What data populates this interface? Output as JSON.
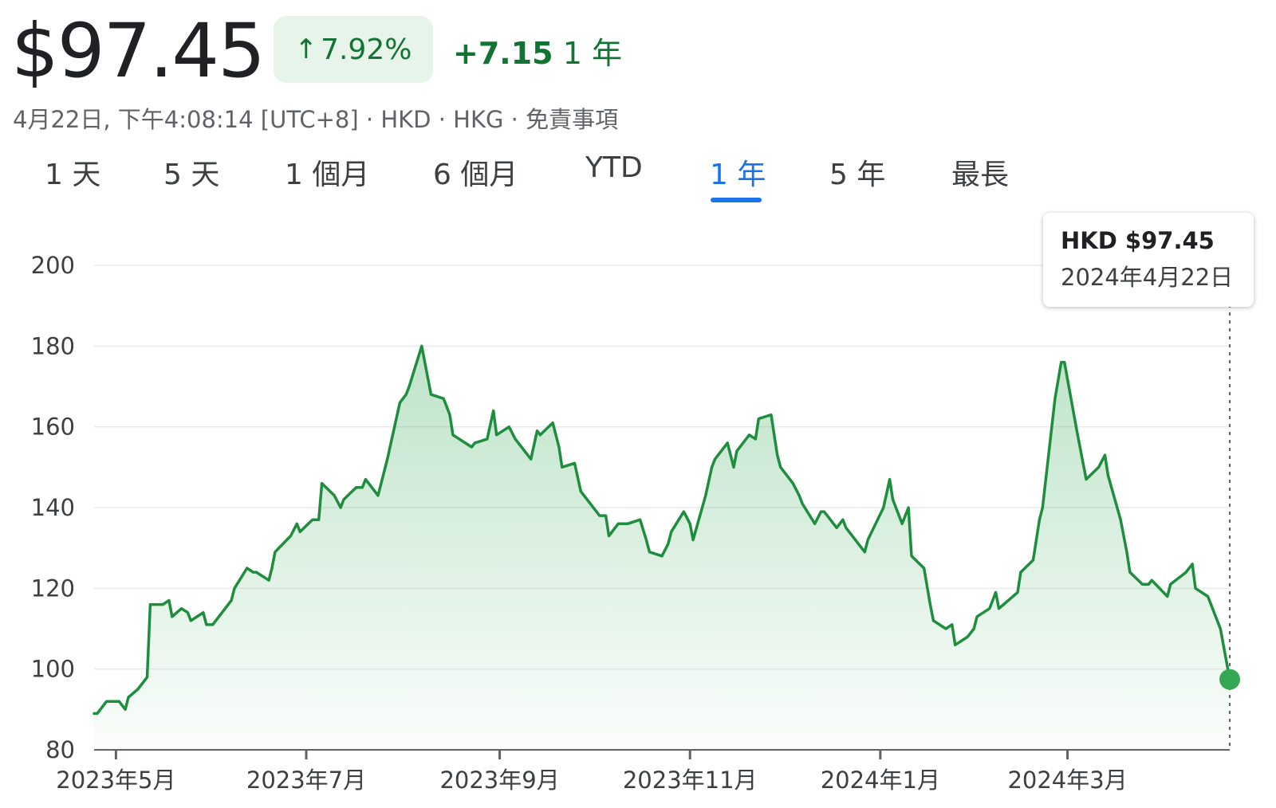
{
  "header": {
    "price": "$97.45",
    "change_pct": "7.92%",
    "change_arrow": "up-arrow-icon",
    "change_abs": "+7.15",
    "change_period": "1 年",
    "subline": "4月22日, 下午4:08:14 [UTC+8] · HKD · HKG · 免責事項"
  },
  "tabs": [
    "1 天",
    "5 天",
    "1 個月",
    "6 個月",
    "YTD",
    "1 年",
    "5 年",
    "最長"
  ],
  "active_tab": "1 年",
  "tooltip": {
    "price": "HKD $97.45",
    "date": "2024年4月22日"
  },
  "colors": {
    "line": "#1e8e3e",
    "fill_top": "#34a853",
    "positive": "#137333",
    "badge_bg": "#e6f4ea",
    "tab_active": "#1a73e8",
    "grid": "#e8eaed"
  },
  "chart_data": {
    "type": "area",
    "ylim": [
      80,
      200
    ],
    "yticks": [
      80,
      100,
      120,
      140,
      160,
      180,
      200
    ],
    "xtick_labels": [
      "2023年5月",
      "2023年7月",
      "2023年9月",
      "2023年11月",
      "2024年1月",
      "2024年3月"
    ],
    "xtick_dates": [
      "2023-05-01",
      "2023-07-01",
      "2023-09-01",
      "2023-11-01",
      "2024-01-01",
      "2024-03-01"
    ],
    "grid": true,
    "series": [
      {
        "x": [
          "2023-04-24",
          "2023-04-25",
          "2023-04-27",
          "2023-04-28",
          "2023-05-02",
          "2023-05-04",
          "2023-05-05",
          "2023-05-08",
          "2023-05-10",
          "2023-05-11",
          "2023-05-12",
          "2023-05-16",
          "2023-05-18",
          "2023-05-19",
          "2023-05-22",
          "2023-05-24",
          "2023-05-25",
          "2023-05-29",
          "2023-05-30",
          "2023-06-01",
          "2023-06-05",
          "2023-06-07",
          "2023-06-08",
          "2023-06-12",
          "2023-06-14",
          "2023-06-15",
          "2023-06-19",
          "2023-06-20",
          "2023-06-21",
          "2023-06-26",
          "2023-06-28",
          "2023-06-29",
          "2023-07-03",
          "2023-07-05",
          "2023-07-06",
          "2023-07-10",
          "2023-07-12",
          "2023-07-13",
          "2023-07-17",
          "2023-07-19",
          "2023-07-20",
          "2023-07-24",
          "2023-07-26",
          "2023-07-27",
          "2023-07-31",
          "2023-08-02",
          "2023-08-03",
          "2023-08-07",
          "2023-08-09",
          "2023-08-10",
          "2023-08-14",
          "2023-08-16",
          "2023-08-17",
          "2023-08-21",
          "2023-08-23",
          "2023-08-24",
          "2023-08-28",
          "2023-08-30",
          "2023-08-31",
          "2023-09-04",
          "2023-09-06",
          "2023-09-07",
          "2023-09-11",
          "2023-09-13",
          "2023-09-14",
          "2023-09-18",
          "2023-09-20",
          "2023-09-21",
          "2023-09-25",
          "2023-09-27",
          "2023-10-03",
          "2023-10-05",
          "2023-10-06",
          "2023-10-09",
          "2023-10-11",
          "2023-10-12",
          "2023-10-16",
          "2023-10-18",
          "2023-10-19",
          "2023-10-23",
          "2023-10-25",
          "2023-10-26",
          "2023-10-30",
          "2023-11-01",
          "2023-11-02",
          "2023-11-06",
          "2023-11-08",
          "2023-11-09",
          "2023-11-13",
          "2023-11-15",
          "2023-11-16",
          "2023-11-20",
          "2023-11-22",
          "2023-11-23",
          "2023-11-27",
          "2023-11-29",
          "2023-11-30",
          "2023-12-04",
          "2023-12-06",
          "2023-12-07",
          "2023-12-11",
          "2023-12-13",
          "2023-12-14",
          "2023-12-18",
          "2023-12-20",
          "2023-12-21",
          "2023-12-27",
          "2023-12-28",
          "2024-01-02",
          "2024-01-04",
          "2024-01-05",
          "2024-01-08",
          "2024-01-10",
          "2024-01-11",
          "2024-01-15",
          "2024-01-17",
          "2024-01-18",
          "2024-01-22",
          "2024-01-24",
          "2024-01-25",
          "2024-01-29",
          "2024-01-31",
          "2024-02-01",
          "2024-02-05",
          "2024-02-07",
          "2024-02-08",
          "2024-02-14",
          "2024-02-15",
          "2024-02-19",
          "2024-02-21",
          "2024-02-22",
          "2024-02-26",
          "2024-02-28",
          "2024-02-29",
          "2024-03-04",
          "2024-03-06",
          "2024-03-07",
          "2024-03-11",
          "2024-03-13",
          "2024-03-14",
          "2024-03-18",
          "2024-03-20",
          "2024-03-21",
          "2024-03-25",
          "2024-03-27",
          "2024-03-28",
          "2024-04-02",
          "2024-04-03",
          "2024-04-08",
          "2024-04-10",
          "2024-04-11",
          "2024-04-15",
          "2024-04-17",
          "2024-04-19",
          "2024-04-22"
        ],
        "values": [
          89,
          89,
          91,
          92,
          92,
          90,
          93,
          95,
          97,
          98,
          116,
          116,
          117,
          113,
          115,
          114,
          112,
          114,
          111,
          111,
          115,
          117,
          120,
          125,
          124,
          124,
          122,
          125,
          129,
          133,
          136,
          134,
          137,
          137,
          146,
          143,
          140,
          142,
          145,
          145,
          147,
          143,
          149,
          152,
          166,
          168,
          170,
          180,
          172,
          168,
          167,
          163,
          158,
          156,
          155,
          156,
          157,
          164,
          158,
          160,
          157,
          156,
          152,
          159,
          158,
          161,
          155,
          150,
          151,
          144,
          138,
          138,
          133,
          136,
          136,
          136,
          137,
          132,
          129,
          128,
          131,
          134,
          139,
          136,
          132,
          143,
          150,
          152,
          156,
          150,
          154,
          158,
          157,
          162,
          163,
          153,
          150,
          146,
          143,
          141,
          136,
          139,
          139,
          135,
          137,
          135,
          129,
          132,
          140,
          147,
          142,
          136,
          140,
          128,
          125,
          116,
          112,
          110,
          111,
          106,
          108,
          110,
          113,
          115,
          119,
          115,
          119,
          124,
          127,
          137,
          140,
          167,
          176,
          176,
          159,
          151,
          147,
          150,
          153,
          148,
          137,
          129,
          124,
          121,
          121,
          122,
          118,
          121,
          124,
          126,
          120,
          118,
          114,
          110,
          97.45
        ]
      }
    ]
  }
}
